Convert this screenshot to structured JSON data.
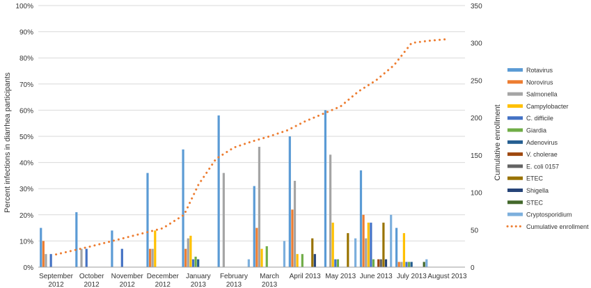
{
  "chart_data": {
    "type": "bar",
    "categories": [
      [
        "September",
        "2012"
      ],
      [
        "October",
        "2012"
      ],
      [
        "November",
        "2012"
      ],
      [
        "December",
        "2012"
      ],
      [
        "January",
        "2013"
      ],
      [
        "February",
        "2013"
      ],
      [
        "March",
        "2013"
      ],
      [
        "April 2013"
      ],
      [
        "May 2013"
      ],
      [
        "June 2013"
      ],
      [
        "July 2013"
      ],
      [
        "August 2013"
      ]
    ],
    "ylabel": "Percent infections in diarrhea participants",
    "y2label": "Cumulative enrollment",
    "ylim": [
      0,
      100
    ],
    "y2lim": [
      0,
      350
    ],
    "yticks": [
      "0%",
      "10%",
      "20%",
      "30%",
      "40%",
      "50%",
      "60%",
      "70%",
      "80%",
      "90%",
      "100%"
    ],
    "y2ticks": [
      "0",
      "50",
      "100",
      "150",
      "200",
      "250",
      "300",
      "350"
    ],
    "grid": true,
    "legend_position": "right",
    "series": [
      {
        "name": "Rotavirus",
        "color": "#5b9bd5",
        "values": [
          15,
          21,
          14,
          36,
          45,
          58,
          31,
          50,
          60,
          37,
          15,
          0
        ]
      },
      {
        "name": "Norovirus",
        "color": "#ed7d31",
        "values": [
          10,
          0,
          0,
          7,
          7,
          0,
          15,
          22,
          0,
          20,
          2,
          0
        ]
      },
      {
        "name": "Salmonella",
        "color": "#a5a5a5",
        "values": [
          5,
          7,
          0,
          7,
          11,
          36,
          46,
          33,
          43,
          11,
          2,
          0
        ]
      },
      {
        "name": "Campylobacter",
        "color": "#ffc000",
        "values": [
          0,
          0,
          0,
          14,
          12,
          0,
          7,
          5,
          17,
          17,
          13,
          0
        ]
      },
      {
        "name": "C. difficile",
        "color": "#4472c4",
        "values": [
          5,
          7,
          7,
          0,
          3,
          0,
          0,
          0,
          3,
          17,
          2,
          0
        ]
      },
      {
        "name": "Giardia",
        "color": "#70ad47",
        "values": [
          0,
          0,
          0,
          0,
          4,
          0,
          8,
          5,
          3,
          3,
          2,
          0
        ]
      },
      {
        "name": "Adenovirus",
        "color": "#255e91",
        "values": [
          0,
          0,
          0,
          0,
          3,
          0,
          0,
          0,
          0,
          0,
          2,
          0
        ]
      },
      {
        "name": "V. cholerae",
        "color": "#9e480e",
        "values": [
          0,
          0,
          0,
          0,
          0,
          0,
          0,
          0,
          0,
          3,
          0,
          0
        ]
      },
      {
        "name": "E. coli 0157",
        "color": "#636363",
        "values": [
          0,
          0,
          0,
          0,
          0,
          0,
          0,
          0,
          0,
          3,
          0,
          0
        ]
      },
      {
        "name": "ETEC",
        "color": "#997300",
        "values": [
          0,
          0,
          0,
          0,
          0,
          0,
          0,
          11,
          13,
          17,
          0,
          0
        ]
      },
      {
        "name": "Shigella",
        "color": "#264478",
        "values": [
          0,
          0,
          0,
          0,
          0,
          0,
          0,
          5,
          0,
          3,
          0,
          0
        ]
      },
      {
        "name": "STEC",
        "color": "#43682b",
        "values": [
          0,
          0,
          0,
          0,
          0,
          0,
          0,
          0,
          0,
          0,
          2,
          0
        ]
      },
      {
        "name": "Cryptosporidium",
        "color": "#7cafdd",
        "values": [
          0,
          0,
          0,
          0,
          0,
          3,
          10,
          0,
          11,
          20,
          3,
          0
        ]
      }
    ],
    "line_series": {
      "name": "Cumulative enrollment",
      "color": "#ed7d31",
      "axis": "right",
      "x": [
        0,
        1,
        2,
        3,
        3.6,
        4,
        4.5,
        5,
        5.5,
        6,
        6.5,
        7,
        7.5,
        8,
        8.5,
        9,
        9.5,
        10,
        10.5,
        11
      ],
      "values": [
        17,
        28,
        40,
        52,
        70,
        110,
        145,
        160,
        168,
        175,
        183,
        195,
        205,
        215,
        235,
        250,
        270,
        300,
        303,
        305
      ]
    }
  }
}
